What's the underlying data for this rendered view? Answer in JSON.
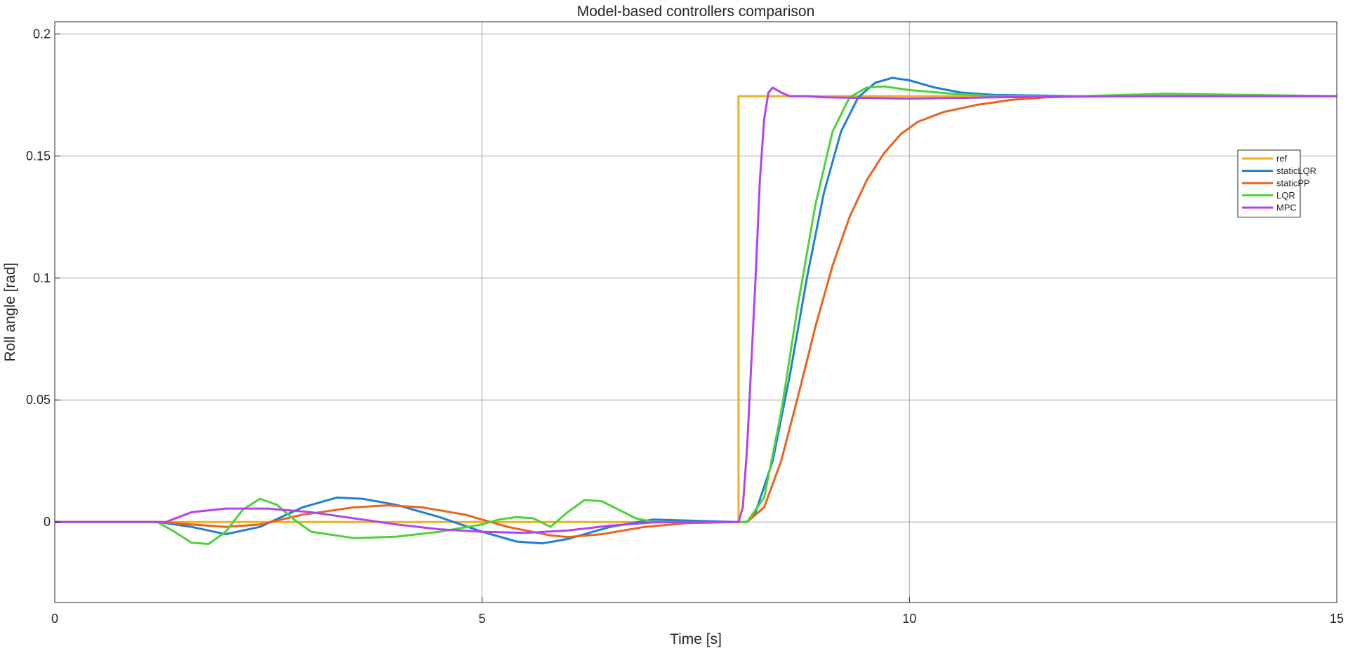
{
  "chart_data": {
    "type": "line",
    "title": "Model-based controllers comparison",
    "xlabel": "Time [s]",
    "ylabel": "Roll angle [rad]",
    "xlim": [
      0,
      15
    ],
    "ylim": [
      -0.033,
      0.205
    ],
    "xticks": [
      0,
      5,
      10,
      15
    ],
    "xtick_labels": [
      "0",
      "5",
      "10",
      "15"
    ],
    "yticks": [
      0,
      0.05,
      0.1,
      0.15,
      0.2
    ],
    "ytick_labels": [
      "0",
      "0.05",
      "0.1",
      "0.15",
      "0.2"
    ],
    "grid": true,
    "legend_position": "right",
    "series": [
      {
        "name": "ref",
        "color": "#edb120",
        "x": [
          0,
          8.0,
          8.0,
          15
        ],
        "y": [
          0,
          0,
          0.1745,
          0.1745
        ]
      },
      {
        "name": "staticLQR",
        "color": "#1f7fd4",
        "x": [
          0,
          1.2,
          1.6,
          2.0,
          2.4,
          2.9,
          3.3,
          3.6,
          4.0,
          4.5,
          5.0,
          5.4,
          5.7,
          6.0,
          6.5,
          7.0,
          7.5,
          8.0,
          8.1,
          8.2,
          8.4,
          8.6,
          8.8,
          9.0,
          9.2,
          9.4,
          9.6,
          9.8,
          10.0,
          10.3,
          10.6,
          11.0,
          11.5,
          12.0,
          13.0,
          14.0,
          15.0
        ],
        "y": [
          0,
          0,
          -0.002,
          -0.005,
          -0.002,
          0.006,
          0.01,
          0.0095,
          0.007,
          0.002,
          -0.004,
          -0.008,
          -0.0088,
          -0.007,
          -0.002,
          0.001,
          0.0005,
          0,
          0,
          0.004,
          0.025,
          0.06,
          0.1,
          0.135,
          0.16,
          0.174,
          0.18,
          0.182,
          0.181,
          0.178,
          0.176,
          0.175,
          0.1748,
          0.1745,
          0.1745,
          0.1745,
          0.1745
        ]
      },
      {
        "name": "staticPP",
        "color": "#e8641a",
        "x": [
          0,
          1.2,
          1.6,
          2.0,
          2.4,
          2.9,
          3.5,
          3.9,
          4.3,
          4.8,
          5.3,
          5.8,
          6.0,
          6.4,
          6.9,
          7.4,
          8.0,
          8.1,
          8.3,
          8.5,
          8.7,
          8.9,
          9.1,
          9.3,
          9.5,
          9.7,
          9.9,
          10.1,
          10.4,
          10.8,
          11.2,
          11.6,
          12.0,
          13.0,
          14.0,
          15.0
        ],
        "y": [
          0,
          0,
          -0.001,
          -0.002,
          -0.001,
          0.003,
          0.006,
          0.0068,
          0.006,
          0.003,
          -0.002,
          -0.0055,
          -0.0062,
          -0.005,
          -0.002,
          -0.0005,
          0,
          0,
          0.006,
          0.025,
          0.052,
          0.08,
          0.105,
          0.125,
          0.14,
          0.151,
          0.159,
          0.164,
          0.168,
          0.171,
          0.173,
          0.174,
          0.1745,
          0.1745,
          0.1745,
          0.1745
        ]
      },
      {
        "name": "LQR",
        "color": "#4fd13a",
        "x": [
          0,
          1.2,
          1.4,
          1.6,
          1.8,
          2.0,
          2.2,
          2.4,
          2.6,
          2.8,
          3.0,
          3.5,
          4.0,
          4.5,
          5.0,
          5.2,
          5.4,
          5.6,
          5.8,
          6.0,
          6.2,
          6.4,
          6.6,
          6.8,
          7.0,
          7.5,
          8.0,
          8.1,
          8.3,
          8.5,
          8.7,
          8.9,
          9.1,
          9.3,
          9.5,
          9.7,
          10.0,
          10.5,
          11.0,
          12.0,
          13.0,
          14.0,
          15.0
        ],
        "y": [
          0,
          0,
          -0.004,
          -0.0085,
          -0.009,
          -0.004,
          0.005,
          0.0095,
          0.007,
          0.001,
          -0.004,
          -0.0066,
          -0.006,
          -0.004,
          -0.001,
          0.001,
          0.002,
          0.0015,
          -0.002,
          0.004,
          0.009,
          0.0085,
          0.005,
          0.0015,
          0,
          0,
          0,
          0,
          0.01,
          0.045,
          0.09,
          0.13,
          0.16,
          0.174,
          0.178,
          0.1785,
          0.177,
          0.1755,
          0.1745,
          0.1745,
          0.1755,
          0.175,
          0.1745
        ]
      },
      {
        "name": "MPC",
        "color": "#b243f0",
        "x": [
          0,
          1.3,
          1.6,
          2.0,
          2.5,
          3.0,
          3.5,
          4.0,
          4.5,
          5.0,
          5.5,
          6.0,
          6.5,
          7.0,
          7.5,
          8.0,
          8.05,
          8.1,
          8.2,
          8.25,
          8.3,
          8.35,
          8.4,
          8.5,
          8.6,
          8.8,
          9.0,
          10.0,
          11.0,
          12.0,
          13.0,
          14.0,
          15.0
        ],
        "y": [
          0,
          0,
          0.004,
          0.0055,
          0.0055,
          0.004,
          0.0015,
          -0.001,
          -0.003,
          -0.004,
          -0.0045,
          -0.0035,
          -0.0015,
          -0.0002,
          0,
          0,
          0.006,
          0.03,
          0.1,
          0.14,
          0.165,
          0.176,
          0.178,
          0.176,
          0.1745,
          0.1745,
          0.174,
          0.1735,
          0.174,
          0.1743,
          0.1745,
          0.1745,
          0.1745
        ]
      }
    ]
  }
}
